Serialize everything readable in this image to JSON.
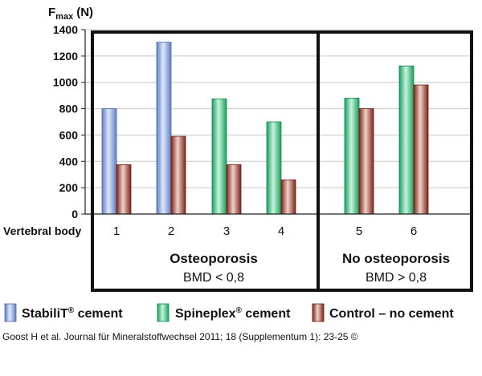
{
  "chart_data": {
    "type": "bar",
    "ylabel": "Fmax",
    "ylabel_sub": "max",
    "ylabel_main": "F",
    "ylabel_unit": "(N)",
    "ylim": [
      0,
      1400
    ],
    "yticks": [
      0,
      200,
      400,
      600,
      800,
      1000,
      1200,
      1400
    ],
    "xlabel": "Vertebral body",
    "categories": [
      "1",
      "2",
      "3",
      "4",
      "5",
      "6"
    ],
    "series": [
      {
        "name": "StabiliT® cement",
        "values": [
          800,
          1305,
          null,
          null,
          null,
          null
        ]
      },
      {
        "name": "Spineplex® cement",
        "values": [
          null,
          null,
          875,
          700,
          880,
          1125
        ]
      },
      {
        "name": "Control – no cement",
        "values": [
          375,
          590,
          375,
          260,
          800,
          980
        ]
      }
    ],
    "colors": {
      "stabilit": "#8fa7d9",
      "spineplex": "#49c48a",
      "control": "#9b3a2c",
      "frame": "#111111",
      "grid": "#c8c8c8"
    },
    "groups": [
      {
        "title": "Osteoporosis",
        "subtitle": "BMD < 0,8",
        "categories": [
          "1",
          "2",
          "3",
          "4"
        ]
      },
      {
        "title": "No osteoporosis",
        "subtitle": "BMD > 0,8",
        "categories": [
          "5",
          "6"
        ]
      }
    ],
    "legend": [
      {
        "label": "StabiliT",
        "mark": "®",
        "suffix": " cement",
        "series": "stabilit"
      },
      {
        "label": "Spineplex",
        "mark": "®",
        "suffix": " cement",
        "series": "spineplex"
      },
      {
        "label": "Control – no cement",
        "mark": "",
        "suffix": "",
        "series": "control"
      }
    ],
    "legend_position": "bottom",
    "grid": true
  },
  "source": "Goost H et al. Journal für Mineralstoffwechsel 2011; 18 (Supplementum 1): 23-25 ©"
}
